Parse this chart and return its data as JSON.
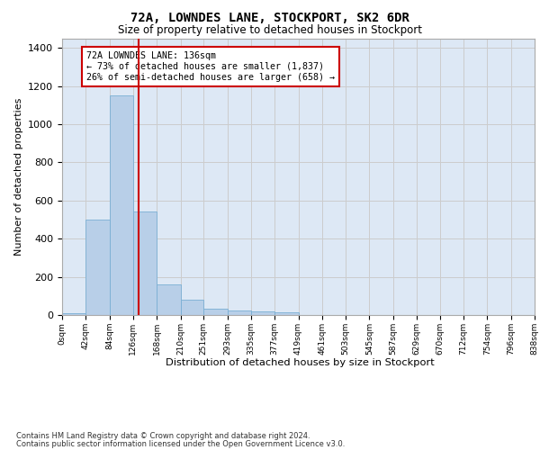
{
  "title": "72A, LOWNDES LANE, STOCKPORT, SK2 6DR",
  "subtitle": "Size of property relative to detached houses in Stockport",
  "xlabel": "Distribution of detached houses by size in Stockport",
  "ylabel": "Number of detached properties",
  "footer_line1": "Contains HM Land Registry data © Crown copyright and database right 2024.",
  "footer_line2": "Contains public sector information licensed under the Open Government Licence v3.0.",
  "annotation_title": "72A LOWNDES LANE: 136sqm",
  "annotation_line2": "← 73% of detached houses are smaller (1,837)",
  "annotation_line3": "26% of semi-detached houses are larger (658) →",
  "property_size": 136,
  "bin_edges": [
    0,
    42,
    84,
    126,
    168,
    210,
    251,
    293,
    335,
    377,
    419,
    461,
    503,
    545,
    587,
    629,
    670,
    712,
    754,
    796,
    838
  ],
  "bar_heights": [
    10,
    500,
    1150,
    540,
    160,
    80,
    35,
    25,
    20,
    15,
    0,
    0,
    0,
    0,
    0,
    0,
    0,
    0,
    0,
    0
  ],
  "bar_color": "#b8cfe8",
  "bar_edge_color": "#7aafd4",
  "vline_color": "#cc0000",
  "vline_x": 136,
  "annotation_box_color": "#cc0000",
  "grid_color": "#cccccc",
  "background_color": "#dde8f5",
  "ylim": [
    0,
    1450
  ],
  "yticks": [
    0,
    200,
    400,
    600,
    800,
    1000,
    1200,
    1400
  ]
}
